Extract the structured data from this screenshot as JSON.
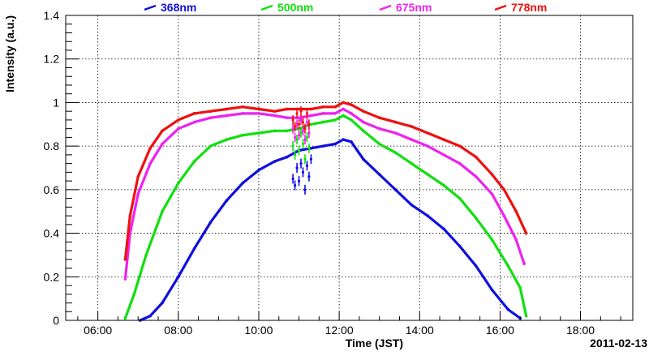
{
  "chart_data": {
    "type": "scatter",
    "title": "",
    "xlabel": "Time (JST)",
    "ylabel": "Intensity (a.u.)",
    "date_label": "2011-02-13",
    "xlim": [
      5.2,
      19.3
    ],
    "ylim": [
      0,
      1.4
    ],
    "x_ticks": [
      {
        "value": 6,
        "label": "06:00"
      },
      {
        "value": 8,
        "label": "08:00"
      },
      {
        "value": 10,
        "label": "10:00"
      },
      {
        "value": 12,
        "label": "12:00"
      },
      {
        "value": 14,
        "label": "14:00"
      },
      {
        "value": 16,
        "label": "16:00"
      },
      {
        "value": 18,
        "label": "18:00"
      }
    ],
    "y_ticks": [
      {
        "value": 0,
        "label": "0"
      },
      {
        "value": 0.2,
        "label": "0.2"
      },
      {
        "value": 0.4,
        "label": "0.4"
      },
      {
        "value": 0.6,
        "label": "0.6"
      },
      {
        "value": 0.8,
        "label": "0.8"
      },
      {
        "value": 1,
        "label": "1"
      },
      {
        "value": 1.2,
        "label": "1.2"
      },
      {
        "value": 1.4,
        "label": "1.4"
      }
    ],
    "grid": true,
    "legend_position": "top",
    "series": [
      {
        "name": "368nm",
        "color": "#1010e0",
        "x": [
          7.05,
          7.3,
          7.6,
          8.0,
          8.4,
          8.8,
          9.2,
          9.6,
          10.0,
          10.4,
          10.7,
          11.0,
          11.3,
          11.6,
          11.9,
          12.1,
          12.3,
          12.6,
          13.0,
          13.4,
          13.8,
          14.2,
          14.6,
          15.0,
          15.4,
          15.8,
          16.2,
          16.5
        ],
        "values": [
          0.0,
          0.02,
          0.08,
          0.2,
          0.33,
          0.45,
          0.55,
          0.63,
          0.69,
          0.73,
          0.75,
          0.78,
          0.79,
          0.8,
          0.81,
          0.83,
          0.82,
          0.74,
          0.67,
          0.6,
          0.53,
          0.48,
          0.42,
          0.34,
          0.25,
          0.14,
          0.05,
          0.01
        ],
        "scatter_x": [
          10.85,
          10.9,
          10.95,
          11.0,
          11.05,
          11.1,
          11.15,
          11.2,
          11.25,
          11.3
        ],
        "scatter_values": [
          0.65,
          0.62,
          0.7,
          0.64,
          0.72,
          0.68,
          0.6,
          0.71,
          0.66,
          0.74
        ]
      },
      {
        "name": "500nm",
        "color": "#10e010",
        "x": [
          6.68,
          6.9,
          7.2,
          7.6,
          8.0,
          8.4,
          8.8,
          9.2,
          9.6,
          10.0,
          10.4,
          10.7,
          11.0,
          11.3,
          11.6,
          11.9,
          12.1,
          12.3,
          12.6,
          13.0,
          13.4,
          13.8,
          14.2,
          14.6,
          15.0,
          15.4,
          15.8,
          16.2,
          16.5,
          16.65
        ],
        "values": [
          0.01,
          0.12,
          0.3,
          0.5,
          0.63,
          0.73,
          0.8,
          0.83,
          0.85,
          0.86,
          0.87,
          0.87,
          0.88,
          0.9,
          0.91,
          0.92,
          0.94,
          0.92,
          0.87,
          0.81,
          0.77,
          0.72,
          0.67,
          0.62,
          0.56,
          0.47,
          0.37,
          0.25,
          0.15,
          0.02
        ],
        "scatter_x": [
          10.85,
          10.9,
          10.95,
          11.0,
          11.05,
          11.1,
          11.15,
          11.2,
          11.25
        ],
        "scatter_values": [
          0.8,
          0.76,
          0.83,
          0.78,
          0.86,
          0.81,
          0.74,
          0.84,
          0.79
        ]
      },
      {
        "name": "675nm",
        "color": "#ee22ee",
        "x": [
          6.68,
          6.8,
          7.0,
          7.3,
          7.6,
          8.0,
          8.4,
          8.8,
          9.2,
          9.6,
          10.0,
          10.4,
          10.7,
          11.0,
          11.3,
          11.6,
          11.9,
          12.1,
          12.3,
          12.6,
          13.0,
          13.4,
          13.8,
          14.2,
          14.6,
          15.0,
          15.4,
          15.8,
          16.1,
          16.4,
          16.6
        ],
        "values": [
          0.19,
          0.4,
          0.58,
          0.72,
          0.81,
          0.88,
          0.91,
          0.93,
          0.94,
          0.95,
          0.95,
          0.94,
          0.93,
          0.93,
          0.94,
          0.95,
          0.95,
          0.97,
          0.95,
          0.91,
          0.88,
          0.86,
          0.83,
          0.8,
          0.76,
          0.72,
          0.66,
          0.58,
          0.48,
          0.37,
          0.26
        ],
        "scatter_x": [
          10.85,
          10.9,
          10.95,
          11.0,
          11.05,
          11.1,
          11.15,
          11.2,
          11.25
        ],
        "scatter_values": [
          0.88,
          0.84,
          0.9,
          0.85,
          0.92,
          0.87,
          0.83,
          0.91,
          0.86
        ]
      },
      {
        "name": "778nm",
        "color": "#ee1010",
        "x": [
          6.68,
          6.8,
          7.0,
          7.3,
          7.6,
          8.0,
          8.4,
          8.8,
          9.2,
          9.6,
          10.0,
          10.4,
          10.7,
          11.0,
          11.3,
          11.6,
          11.9,
          12.1,
          12.3,
          12.6,
          13.0,
          13.4,
          13.8,
          14.2,
          14.6,
          15.0,
          15.4,
          15.8,
          16.1,
          16.4,
          16.65
        ],
        "values": [
          0.28,
          0.48,
          0.66,
          0.79,
          0.87,
          0.92,
          0.95,
          0.96,
          0.97,
          0.98,
          0.97,
          0.96,
          0.97,
          0.97,
          0.97,
          0.98,
          0.98,
          1.0,
          0.99,
          0.96,
          0.93,
          0.91,
          0.89,
          0.86,
          0.83,
          0.8,
          0.75,
          0.67,
          0.6,
          0.5,
          0.4
        ],
        "scatter_x": [
          10.85,
          10.9,
          10.95,
          11.0,
          11.05,
          11.1,
          11.15,
          11.2,
          11.25
        ],
        "scatter_values": [
          0.92,
          0.89,
          0.95,
          0.9,
          0.96,
          0.91,
          0.88,
          0.95,
          0.9
        ]
      }
    ]
  }
}
